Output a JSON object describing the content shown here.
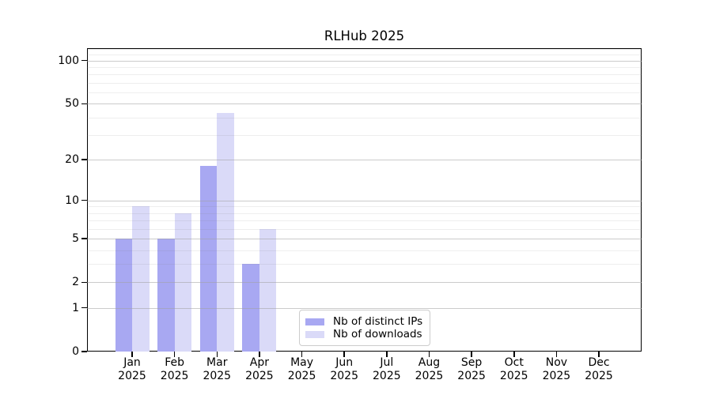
{
  "title": "RLHub 2025",
  "chart_data": {
    "type": "bar",
    "title": "RLHub 2025",
    "y_scale": "log1p",
    "grid": true,
    "categories": [
      "Jan 2025",
      "Feb 2025",
      "Mar 2025",
      "Apr 2025",
      "May 2025",
      "Jun 2025",
      "Jul 2025",
      "Aug 2025",
      "Sep 2025",
      "Oct 2025",
      "Nov 2025",
      "Dec 2025"
    ],
    "series": [
      {
        "name": "Nb of distinct IPs",
        "color": "#a8a8f2",
        "values": [
          5,
          5,
          18,
          3,
          0,
          0,
          0,
          0,
          0,
          0,
          0,
          0
        ]
      },
      {
        "name": "Nb of downloads",
        "color": "#dadaf8",
        "values": [
          9,
          8,
          43,
          6,
          0,
          0,
          0,
          0,
          0,
          0,
          0,
          0
        ]
      }
    ],
    "yticks": [
      0,
      1,
      2,
      5,
      10,
      20,
      50,
      100
    ],
    "ytick_labels": [
      "0",
      "1",
      "2",
      "5",
      "10",
      "20",
      "50",
      "100"
    ],
    "ylim": [
      0,
      122
    ],
    "xlabel": "",
    "ylabel": "",
    "legend_position": "lower left-of-center inside plot"
  }
}
